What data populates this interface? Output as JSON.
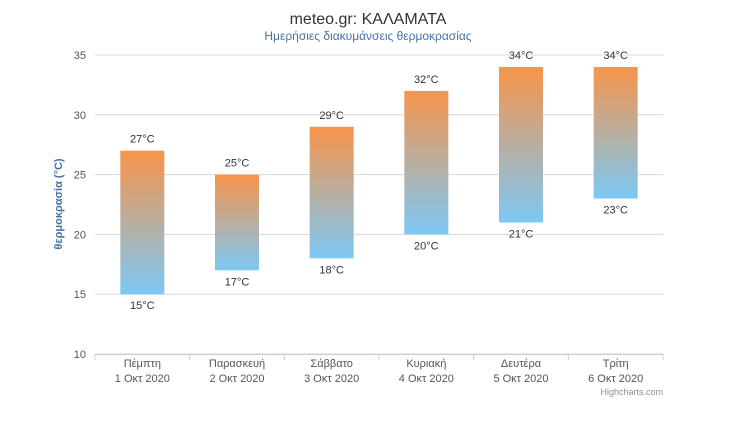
{
  "chart_data": {
    "type": "bar",
    "title": "meteo.gr: ΚΑΛΑΜΑΤΑ",
    "subtitle": "Ημερήσιες διακυμάνσεις θερμοκρασίας",
    "ylabel": "θερμοκρασία (°C)",
    "ylim": [
      10,
      35
    ],
    "yticks": [
      "10",
      "15",
      "20",
      "25",
      "30",
      "35"
    ],
    "grid": true,
    "categories": [
      [
        "Πέμπτη",
        "1 Οκτ 2020"
      ],
      [
        "Παρασκευή",
        "2 Οκτ 2020"
      ],
      [
        "Σάββατο",
        "3 Οκτ 2020"
      ],
      [
        "Κυριακή",
        "4 Οκτ 2020"
      ],
      [
        "Δευτέρα",
        "5 Οκτ 2020"
      ],
      [
        "Τρίτη",
        "6 Οκτ 2020"
      ]
    ],
    "low": [
      15,
      17,
      18,
      20,
      21,
      23
    ],
    "high": [
      27,
      25,
      29,
      32,
      34,
      34
    ],
    "low_labels": [
      "15°C",
      "17°C",
      "18°C",
      "20°C",
      "21°C",
      "23°C"
    ],
    "high_labels": [
      "27°C",
      "25°C",
      "29°C",
      "32°C",
      "34°C",
      "34°C"
    ],
    "colors": {
      "high": "#f7944a",
      "low": "#7cc8f5"
    },
    "credits": "Highcharts.com"
  }
}
